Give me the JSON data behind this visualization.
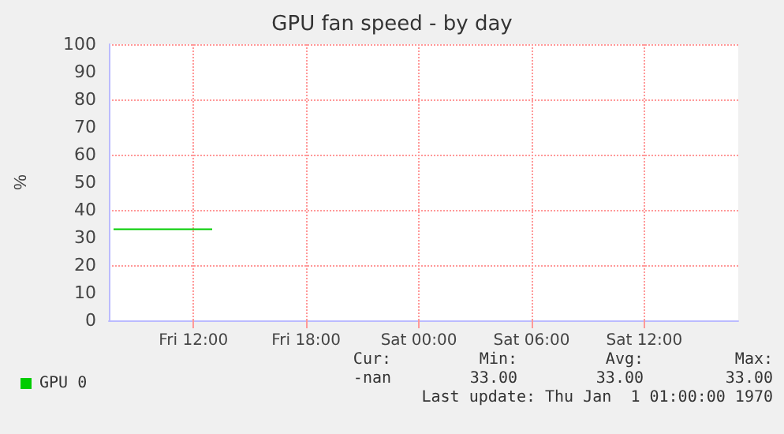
{
  "chart_data": {
    "type": "line",
    "title": "GPU fan speed - by day",
    "ylabel": "%",
    "xlim": [
      "1970-01-02T07:30",
      "1970-01-03T17:00"
    ],
    "xticks": [
      {
        "value": "1970-01-02T12:00",
        "label": "Fri 12:00"
      },
      {
        "value": "1970-01-02T18:00",
        "label": "Fri 18:00"
      },
      {
        "value": "1970-01-03T00:00",
        "label": "Sat 00:00"
      },
      {
        "value": "1970-01-03T06:00",
        "label": "Sat 06:00"
      },
      {
        "value": "1970-01-03T12:00",
        "label": "Sat 12:00"
      }
    ],
    "ylim": [
      0,
      100
    ],
    "yticks": [
      0,
      10,
      20,
      30,
      40,
      50,
      60,
      70,
      80,
      90,
      100
    ],
    "series": [
      {
        "name": "GPU 0",
        "color": "#00cc00",
        "x": [
          "1970-01-02T07:45",
          "1970-01-02T13:00"
        ],
        "values": [
          33,
          33
        ]
      }
    ],
    "grid": true,
    "legend": "bottom left",
    "marker": "none",
    "line_style": "solid",
    "annotations": [
      "Cur:",
      "Min:",
      "Avg:",
      "Max:",
      "-nan",
      "33.00",
      "33.00",
      "33.00",
      "Last update: Thu Jan  1 01:00:00 1970"
    ]
  }
}
